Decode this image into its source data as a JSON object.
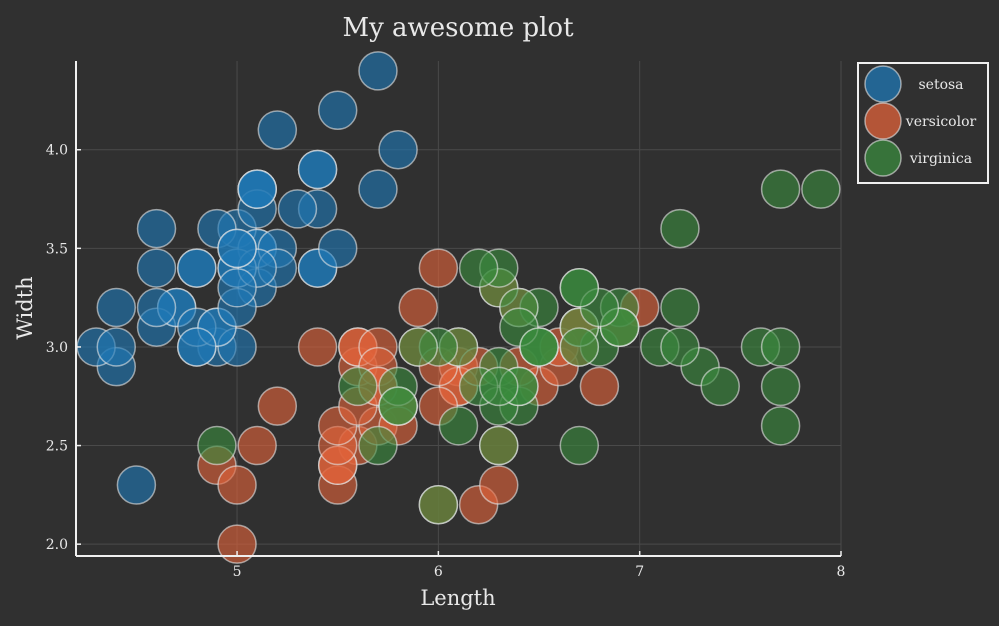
{
  "chart_data": {
    "type": "scatter",
    "title": "My awesome plot",
    "xlabel": "Length",
    "ylabel": "Width",
    "xlim": [
      4.2,
      8.0
    ],
    "ylim": [
      1.94,
      4.45
    ],
    "xticks": [
      "5",
      "6",
      "7",
      "8"
    ],
    "yticks": [
      "2.0",
      "2.5",
      "3.0",
      "3.5",
      "4.0"
    ],
    "grid": true,
    "legend": {
      "placement": "top-right"
    },
    "series": [
      {
        "name": "setosa",
        "color": "#1f77b4",
        "points": [
          [
            5.1,
            3.5
          ],
          [
            4.9,
            3.0
          ],
          [
            4.7,
            3.2
          ],
          [
            4.6,
            3.1
          ],
          [
            5.0,
            3.6
          ],
          [
            5.4,
            3.9
          ],
          [
            4.6,
            3.4
          ],
          [
            5.0,
            3.4
          ],
          [
            4.4,
            2.9
          ],
          [
            4.9,
            3.1
          ],
          [
            5.4,
            3.7
          ],
          [
            4.8,
            3.4
          ],
          [
            4.8,
            3.0
          ],
          [
            4.3,
            3.0
          ],
          [
            5.8,
            4.0
          ],
          [
            5.7,
            4.4
          ],
          [
            5.4,
            3.9
          ],
          [
            5.1,
            3.5
          ],
          [
            5.7,
            3.8
          ],
          [
            5.1,
            3.8
          ],
          [
            5.4,
            3.4
          ],
          [
            5.1,
            3.7
          ],
          [
            4.6,
            3.6
          ],
          [
            5.1,
            3.3
          ],
          [
            4.8,
            3.4
          ],
          [
            5.0,
            3.0
          ],
          [
            5.0,
            3.4
          ],
          [
            5.2,
            3.5
          ],
          [
            5.2,
            3.4
          ],
          [
            4.7,
            3.2
          ],
          [
            4.8,
            3.1
          ],
          [
            5.4,
            3.4
          ],
          [
            5.2,
            4.1
          ],
          [
            5.5,
            4.2
          ],
          [
            4.9,
            3.1
          ],
          [
            5.0,
            3.2
          ],
          [
            5.5,
            3.5
          ],
          [
            4.9,
            3.6
          ],
          [
            4.4,
            3.0
          ],
          [
            5.1,
            3.4
          ],
          [
            5.0,
            3.5
          ],
          [
            4.5,
            2.3
          ],
          [
            4.4,
            3.2
          ],
          [
            5.0,
            3.5
          ],
          [
            5.1,
            3.8
          ],
          [
            4.8,
            3.0
          ],
          [
            5.1,
            3.8
          ],
          [
            4.6,
            3.2
          ],
          [
            5.3,
            3.7
          ],
          [
            5.0,
            3.3
          ]
        ]
      },
      {
        "name": "versicolor",
        "color": "#e0623a",
        "points": [
          [
            7.0,
            3.2
          ],
          [
            6.4,
            3.2
          ],
          [
            6.9,
            3.1
          ],
          [
            5.5,
            2.3
          ],
          [
            6.5,
            2.8
          ],
          [
            5.7,
            2.8
          ],
          [
            6.3,
            3.3
          ],
          [
            4.9,
            2.4
          ],
          [
            6.6,
            2.9
          ],
          [
            5.2,
            2.7
          ],
          [
            5.0,
            2.0
          ],
          [
            5.9,
            3.0
          ],
          [
            6.0,
            2.2
          ],
          [
            6.1,
            2.9
          ],
          [
            5.6,
            2.9
          ],
          [
            6.7,
            3.1
          ],
          [
            5.6,
            3.0
          ],
          [
            5.8,
            2.7
          ],
          [
            6.2,
            2.2
          ],
          [
            5.6,
            2.5
          ],
          [
            5.9,
            3.2
          ],
          [
            6.1,
            2.8
          ],
          [
            6.3,
            2.5
          ],
          [
            6.1,
            2.8
          ],
          [
            6.4,
            2.9
          ],
          [
            6.6,
            3.0
          ],
          [
            6.8,
            2.8
          ],
          [
            6.7,
            3.0
          ],
          [
            6.0,
            2.9
          ],
          [
            5.7,
            2.6
          ],
          [
            5.5,
            2.4
          ],
          [
            5.5,
            2.4
          ],
          [
            5.8,
            2.7
          ],
          [
            6.0,
            2.7
          ],
          [
            5.4,
            3.0
          ],
          [
            6.0,
            3.4
          ],
          [
            6.7,
            3.1
          ],
          [
            6.3,
            2.3
          ],
          [
            5.6,
            3.0
          ],
          [
            5.5,
            2.5
          ],
          [
            5.5,
            2.6
          ],
          [
            6.1,
            3.0
          ],
          [
            5.8,
            2.6
          ],
          [
            5.0,
            2.3
          ],
          [
            5.6,
            2.7
          ],
          [
            5.7,
            3.0
          ],
          [
            5.7,
            2.9
          ],
          [
            6.2,
            2.9
          ],
          [
            5.1,
            2.5
          ],
          [
            5.7,
            2.8
          ]
        ]
      },
      {
        "name": "virginica",
        "color": "#3a8a3e",
        "points": [
          [
            6.3,
            3.3
          ],
          [
            5.8,
            2.7
          ],
          [
            7.1,
            3.0
          ],
          [
            6.3,
            2.9
          ],
          [
            6.5,
            3.0
          ],
          [
            7.6,
            3.0
          ],
          [
            4.9,
            2.5
          ],
          [
            7.3,
            2.9
          ],
          [
            6.7,
            2.5
          ],
          [
            7.2,
            3.6
          ],
          [
            6.5,
            3.2
          ],
          [
            6.4,
            2.7
          ],
          [
            6.8,
            3.0
          ],
          [
            5.7,
            2.5
          ],
          [
            5.8,
            2.8
          ],
          [
            6.4,
            3.2
          ],
          [
            6.5,
            3.0
          ],
          [
            7.7,
            3.8
          ],
          [
            7.7,
            2.6
          ],
          [
            6.0,
            2.2
          ],
          [
            6.9,
            3.2
          ],
          [
            5.6,
            2.8
          ],
          [
            7.7,
            2.8
          ],
          [
            6.3,
            2.7
          ],
          [
            6.7,
            3.3
          ],
          [
            7.2,
            3.2
          ],
          [
            6.2,
            2.8
          ],
          [
            6.1,
            3.0
          ],
          [
            6.4,
            2.8
          ],
          [
            7.2,
            3.0
          ],
          [
            7.4,
            2.8
          ],
          [
            7.9,
            3.8
          ],
          [
            6.4,
            2.8
          ],
          [
            6.3,
            2.8
          ],
          [
            6.1,
            2.6
          ],
          [
            7.7,
            3.0
          ],
          [
            6.3,
            3.4
          ],
          [
            6.4,
            3.1
          ],
          [
            6.0,
            3.0
          ],
          [
            6.9,
            3.1
          ],
          [
            6.7,
            3.1
          ],
          [
            6.9,
            3.1
          ],
          [
            5.8,
            2.7
          ],
          [
            6.8,
            3.2
          ],
          [
            6.7,
            3.3
          ],
          [
            6.7,
            3.0
          ],
          [
            6.3,
            2.5
          ],
          [
            6.5,
            3.0
          ],
          [
            6.2,
            3.4
          ],
          [
            5.9,
            3.0
          ]
        ]
      }
    ]
  }
}
